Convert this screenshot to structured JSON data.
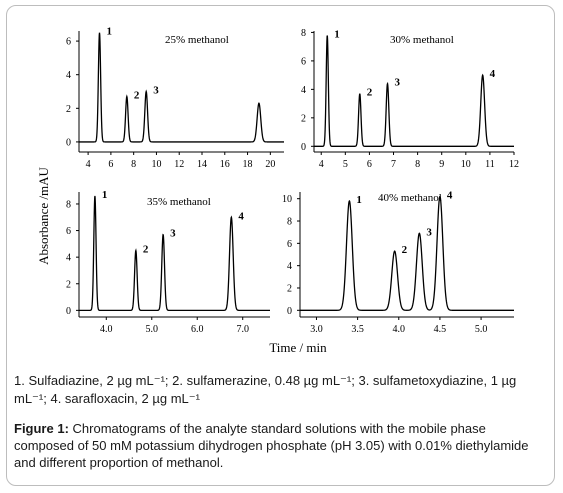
{
  "chart_data": [
    {
      "type": "line",
      "title": "25% methanol",
      "x_ticks": [
        4,
        6,
        8,
        10,
        12,
        14,
        16,
        18,
        20
      ],
      "y_ticks": [
        0,
        2,
        4,
        6
      ],
      "xlim": [
        3.2,
        21.2
      ],
      "ylim": [
        -0.6,
        6.6
      ],
      "peaks": [
        {
          "label": "1",
          "x": 5.0,
          "height": 6.5,
          "width": 0.1
        },
        {
          "label": "2",
          "x": 7.4,
          "height": 2.7,
          "width": 0.11
        },
        {
          "label": "3",
          "x": 9.1,
          "height": 3.0,
          "width": 0.12
        },
        {
          "label": "",
          "x": 19.0,
          "height": 2.3,
          "width": 0.16
        }
      ]
    },
    {
      "type": "line",
      "title": "30% methanol",
      "x_ticks": [
        4,
        5,
        6,
        7,
        8,
        9,
        10,
        11,
        12
      ],
      "y_ticks": [
        0,
        2,
        4,
        6,
        8
      ],
      "xlim": [
        3.7,
        12.0
      ],
      "ylim": [
        -0.4,
        8.1
      ],
      "peaks": [
        {
          "label": "1",
          "x": 4.25,
          "height": 7.8,
          "width": 0.045
        },
        {
          "label": "2",
          "x": 5.6,
          "height": 3.7,
          "width": 0.05
        },
        {
          "label": "3",
          "x": 6.75,
          "height": 4.4,
          "width": 0.055
        },
        {
          "label": "4",
          "x": 10.7,
          "height": 5.0,
          "width": 0.08
        }
      ]
    },
    {
      "type": "line",
      "title": "35% methanol",
      "x_ticks": [
        4.0,
        5.0,
        6.0,
        7.0
      ],
      "y_ticks": [
        0,
        2,
        4,
        6,
        8
      ],
      "xlim": [
        3.4,
        7.6
      ],
      "ylim": [
        -0.5,
        8.9
      ],
      "peaks": [
        {
          "label": "1",
          "x": 3.75,
          "height": 8.6,
          "width": 0.025
        },
        {
          "label": "2",
          "x": 4.65,
          "height": 4.5,
          "width": 0.028
        },
        {
          "label": "3",
          "x": 5.25,
          "height": 5.7,
          "width": 0.03
        },
        {
          "label": "4",
          "x": 6.75,
          "height": 7.0,
          "width": 0.04
        }
      ]
    },
    {
      "type": "line",
      "title": "40% methanol",
      "x_ticks": [
        3.0,
        3.5,
        4.0,
        4.5,
        5.0
      ],
      "y_ticks": [
        0,
        2,
        4,
        6,
        8,
        10
      ],
      "xlim": [
        2.8,
        5.4
      ],
      "ylim": [
        -0.6,
        10.6
      ],
      "peaks": [
        {
          "label": "1",
          "x": 3.4,
          "height": 9.8,
          "width": 0.035
        },
        {
          "label": "2",
          "x": 3.95,
          "height": 5.3,
          "width": 0.035
        },
        {
          "label": "3",
          "x": 4.25,
          "height": 6.9,
          "width": 0.035
        },
        {
          "label": "4",
          "x": 4.5,
          "height": 10.2,
          "width": 0.035
        }
      ]
    }
  ],
  "axis_labels": {
    "y": "Absorbance /mAU",
    "x": "Time / min"
  },
  "notes": "1. Sulfadiazine, 2 µg mL⁻¹; 2. sulfamerazine, 0.48 µg mL⁻¹; 3. sulfametoxydiazine, 1 µg mL⁻¹; 4. sarafloxacin, 2 µg mL⁻¹",
  "caption": {
    "label": "Figure 1:",
    "text": " Chromatograms of the analyte standard solutions with the mobile phase composed of 50 mM potassium dihydrogen phosphate (pH 3.05) with 0.01% diethylamide and different proportion of methanol."
  }
}
